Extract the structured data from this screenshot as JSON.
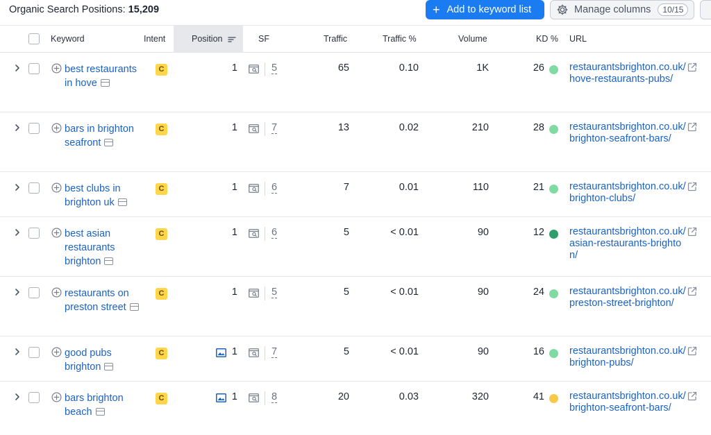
{
  "header": {
    "title_label": "Organic Search Positions:",
    "title_count": "15,209",
    "add_button_label": "Add to keyword list",
    "manage_button_label": "Manage columns",
    "manage_badge": "10/15"
  },
  "columns": {
    "keyword": "Keyword",
    "intent": "Intent",
    "position": "Position",
    "sf": "SF",
    "traffic": "Traffic",
    "traffic_pct": "Traffic %",
    "volume": "Volume",
    "kd": "KD %",
    "url": "URL"
  },
  "colors": {
    "accent": "#1b7cf2",
    "link": "#1b62c4",
    "intent_commercial": "#ffd54a",
    "kd_easy": "#7fdba2",
    "kd_very_easy": "#2e9e6a",
    "kd_possible": "#f7c948"
  },
  "rows": [
    {
      "keyword": "best restaurants in hove",
      "intent": "C",
      "position_icon": "",
      "position": "1",
      "sf": "5",
      "traffic": "65",
      "traffic_pct": "0.10",
      "volume": "1K",
      "kd": "26",
      "kd_color": "#7fdba2",
      "url": "restaurantsbrighton.co.uk/hove-restaurants-pubs/"
    },
    {
      "keyword": "bars in brighton seafront",
      "intent": "C",
      "position_icon": "",
      "position": "1",
      "sf": "7",
      "traffic": "13",
      "traffic_pct": "0.02",
      "volume": "210",
      "kd": "28",
      "kd_color": "#7fdba2",
      "url": "restaurantsbrighton.co.uk/brighton-seafront-bars/"
    },
    {
      "keyword": "best clubs in brighton uk",
      "intent": "C",
      "position_icon": "",
      "position": "1",
      "sf": "6",
      "traffic": "7",
      "traffic_pct": "0.01",
      "volume": "110",
      "kd": "21",
      "kd_color": "#7fdba2",
      "url": "restaurantsbrighton.co.uk/brighton-clubs/"
    },
    {
      "keyword": "best asian restaurants brighton",
      "intent": "C",
      "position_icon": "",
      "position": "1",
      "sf": "6",
      "traffic": "5",
      "traffic_pct": "< 0.01",
      "volume": "90",
      "kd": "12",
      "kd_color": "#2e9e6a",
      "url": "restaurantsbrighton.co.uk/asian-restaurants-brighton/"
    },
    {
      "keyword": "restaurants on preston street",
      "intent": "C",
      "position_icon": "",
      "position": "1",
      "sf": "5",
      "traffic": "5",
      "traffic_pct": "< 0.01",
      "volume": "90",
      "kd": "24",
      "kd_color": "#7fdba2",
      "url": "restaurantsbrighton.co.uk/preston-street-brighton/"
    },
    {
      "keyword": "good pubs brighton",
      "intent": "C",
      "position_icon": "image-icon",
      "position": "1",
      "sf": "7",
      "traffic": "5",
      "traffic_pct": "< 0.01",
      "volume": "90",
      "kd": "16",
      "kd_color": "#7fdba2",
      "url": "restaurantsbrighton.co.uk/brighton-pubs/"
    },
    {
      "keyword": "bars brighton beach",
      "intent": "C",
      "position_icon": "image-icon",
      "position": "1",
      "sf": "8",
      "traffic": "20",
      "traffic_pct": "0.03",
      "volume": "320",
      "kd": "41",
      "kd_color": "#f7c948",
      "url": "restaurantsbrighton.co.uk/brighton-seafront-bars/"
    }
  ]
}
